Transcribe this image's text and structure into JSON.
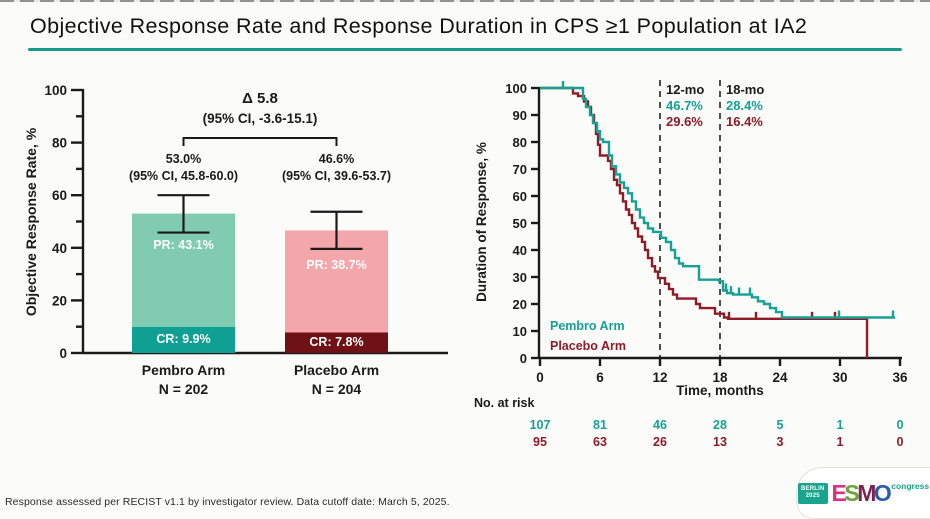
{
  "page": {
    "title": "Objective Response Rate and Response Duration in CPS ≥1 Population at IA2",
    "footnote": "Response assessed per RECIST v1.1 by investigator review. Data cutoff date: March 5, 2025.",
    "accent_teal": "#179a8e",
    "pembro_color": "#15a195",
    "placebo_color": "#8e1b26"
  },
  "logo": {
    "badge_line1": "BERLIN",
    "badge_line2": "2025",
    "badge_color": "#17a58e",
    "letters": [
      {
        "ch": "E",
        "color": "#d63384"
      },
      {
        "ch": "S",
        "color": "#6aa23c"
      },
      {
        "ch": "M",
        "color": "#7c2150"
      },
      {
        "ch": "O",
        "color": "#2b5ea7"
      }
    ],
    "congress": "congress",
    "congress_color": "#17a58e"
  },
  "chart_data": [
    {
      "id": "orr",
      "type": "bar",
      "ylabel": "Objective Response Rate, %",
      "ylim": [
        0,
        100
      ],
      "yticks_major": [
        0,
        20,
        40,
        60,
        80,
        100
      ],
      "yticks_minor": [
        10,
        30,
        50,
        70,
        90
      ],
      "delta_label": "Δ 5.8",
      "delta_ci_label": "(95% CI, -3.6-15.1)",
      "bars": [
        {
          "name": "Pembro Arm",
          "n_label": "N = 202",
          "total": 53.0,
          "total_label": "53.0%",
          "ci_label": "(95% CI, 45.8-60.0)",
          "ci_low": 45.8,
          "ci_high": 60.0,
          "cr": 9.9,
          "cr_label": "CR: 9.9%",
          "pr": 43.1,
          "pr_label": "PR: 43.1%",
          "color_light": "#80cbb1",
          "color_dark": "#10a093"
        },
        {
          "name": "Placebo Arm",
          "n_label": "N = 204",
          "total": 46.6,
          "total_label": "46.6%",
          "ci_label": "(95% CI, 39.6-53.7)",
          "ci_low": 39.6,
          "ci_high": 53.7,
          "cr": 7.8,
          "cr_label": "CR: 7.8%",
          "pr": 38.7,
          "pr_label": "PR: 38.7%",
          "color_light": "#f3a7ab",
          "color_dark": "#6e1216"
        }
      ]
    },
    {
      "id": "dor",
      "type": "line-step",
      "ylabel": "Duration of Response, %",
      "xlabel": "Time, months",
      "xlim": [
        0,
        36
      ],
      "ylim": [
        0,
        100
      ],
      "xticks": [
        0,
        6,
        12,
        18,
        24,
        30,
        36
      ],
      "yticks": [
        0,
        10,
        20,
        30,
        40,
        50,
        60,
        70,
        80,
        90,
        100
      ],
      "milestones": [
        {
          "label": "12-mo",
          "x": 12,
          "pembro_label": "46.7%",
          "placebo_label": "29.6%"
        },
        {
          "label": "18-mo",
          "x": 18,
          "pembro_label": "28.4%",
          "placebo_label": "16.4%"
        }
      ],
      "series": [
        {
          "name": "Pembro Arm",
          "color": "#15a195",
          "steps": [
            [
              0,
              100
            ],
            [
              4.3,
              96
            ],
            [
              4.6,
              93
            ],
            [
              5.0,
              90
            ],
            [
              5.3,
              87
            ],
            [
              5.7,
              84
            ],
            [
              6.0,
              81
            ],
            [
              6.3,
              80
            ],
            [
              6.9,
              75
            ],
            [
              7.2,
              71
            ],
            [
              7.6,
              68
            ],
            [
              8.0,
              65
            ],
            [
              8.4,
              63
            ],
            [
              8.8,
              61
            ],
            [
              9.2,
              58
            ],
            [
              9.6,
              55
            ],
            [
              10.0,
              52
            ],
            [
              10.4,
              50
            ],
            [
              10.8,
              48
            ],
            [
              11.3,
              46.7
            ],
            [
              12.1,
              44.5
            ],
            [
              12.6,
              43
            ],
            [
              13.1,
              40
            ],
            [
              13.5,
              37
            ],
            [
              13.9,
              35
            ],
            [
              14.3,
              34
            ],
            [
              15.9,
              29
            ],
            [
              17.9,
              28.4
            ],
            [
              18.3,
              25
            ],
            [
              18.7,
              24
            ],
            [
              19.3,
              23.5
            ],
            [
              21.2,
              22.5
            ],
            [
              21.8,
              21
            ],
            [
              22.4,
              20
            ],
            [
              23.0,
              18.5
            ],
            [
              23.6,
              17
            ],
            [
              24.2,
              15
            ],
            [
              35.5,
              15
            ]
          ],
          "censors": [
            [
              2.3,
              100
            ],
            [
              18.6,
              25
            ],
            [
              19.1,
              24
            ],
            [
              19.9,
              23.5
            ],
            [
              21.0,
              23.5
            ],
            [
              29.9,
              15
            ],
            [
              35.3,
              15
            ]
          ]
        },
        {
          "name": "Placebo Arm",
          "color": "#8e1b26",
          "steps": [
            [
              0,
              100
            ],
            [
              3.3,
              98
            ],
            [
              3.8,
              97
            ],
            [
              4.4,
              95
            ],
            [
              4.8,
              93
            ],
            [
              5.1,
              90
            ],
            [
              5.4,
              87
            ],
            [
              5.6,
              83
            ],
            [
              5.8,
              79
            ],
            [
              6.0,
              75
            ],
            [
              6.8,
              73
            ],
            [
              7.1,
              70
            ],
            [
              7.4,
              66
            ],
            [
              7.7,
              64
            ],
            [
              8.0,
              61
            ],
            [
              8.3,
              58
            ],
            [
              8.6,
              55
            ],
            [
              8.9,
              53
            ],
            [
              9.2,
              50
            ],
            [
              9.5,
              48
            ],
            [
              9.8,
              45
            ],
            [
              10.2,
              43
            ],
            [
              10.5,
              40
            ],
            [
              10.8,
              37
            ],
            [
              11.2,
              34
            ],
            [
              11.5,
              32
            ],
            [
              11.8,
              29.6
            ],
            [
              12.5,
              27.5
            ],
            [
              12.9,
              25.5
            ],
            [
              13.3,
              23.5
            ],
            [
              13.7,
              22
            ],
            [
              15.6,
              20
            ],
            [
              16.0,
              18.5
            ],
            [
              17.5,
              16.4
            ],
            [
              18.4,
              15
            ],
            [
              18.8,
              14.5
            ],
            [
              32.7,
              0
            ]
          ],
          "censors": [
            [
              18.9,
              14.5
            ],
            [
              21.6,
              14.5
            ],
            [
              27.2,
              14.5
            ],
            [
              29.5,
              14.5
            ]
          ]
        }
      ],
      "no_at_risk": {
        "label": "No. at risk",
        "x": [
          0,
          6,
          12,
          18,
          24,
          30,
          36
        ],
        "rows": [
          {
            "name": "Pembro Arm",
            "color": "#15a195",
            "values": [
              107,
              81,
              46,
              28,
              5,
              1,
              0
            ]
          },
          {
            "name": "Placebo Arm",
            "color": "#8e1b26",
            "values": [
              95,
              63,
              26,
              13,
              3,
              1,
              0
            ]
          }
        ]
      }
    }
  ]
}
